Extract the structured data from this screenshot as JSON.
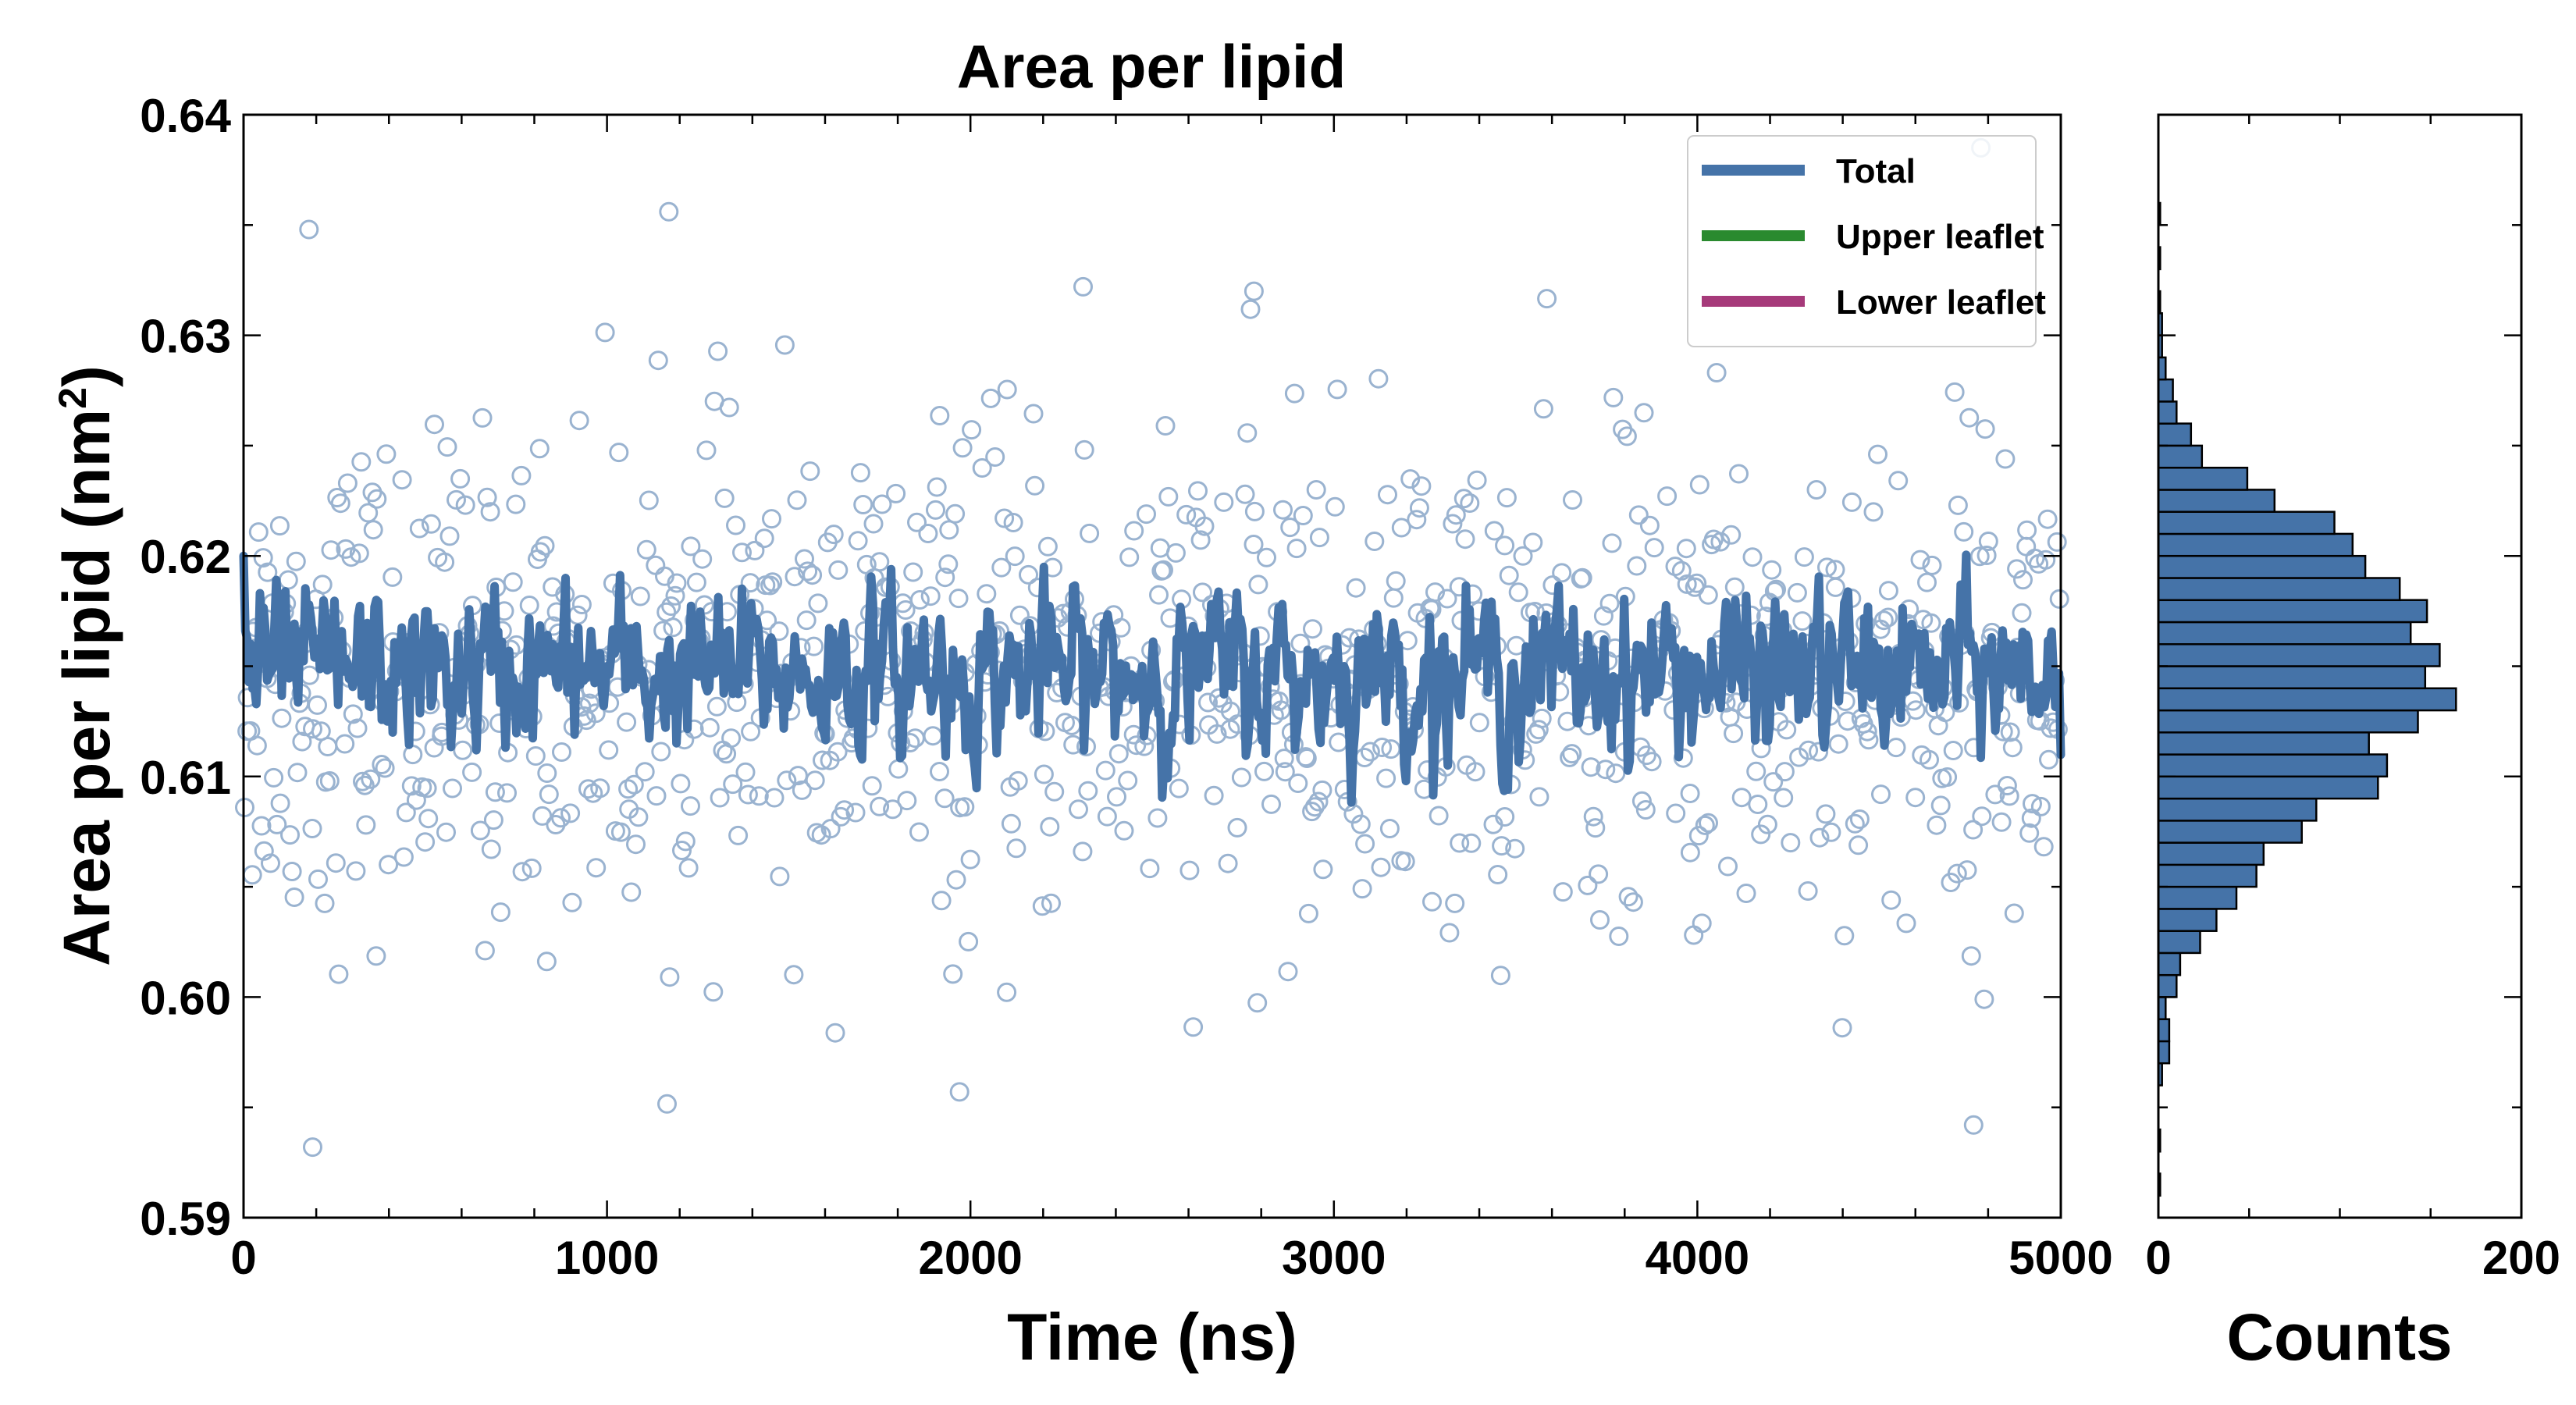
{
  "chart_data": [
    {
      "type": "line",
      "title": "Area per lipid",
      "xlabel": "Time (ns)",
      "ylabel": "Area per lipid (nm",
      "ylabel_sup": "2",
      "ylabel_close": ")",
      "xlim": [
        0,
        5000
      ],
      "ylim": [
        0.59,
        0.64
      ],
      "x_ticks": [
        "0",
        "1000",
        "2000",
        "3000",
        "4000",
        "5000"
      ],
      "y_ticks": [
        "0.59",
        "0.60",
        "0.61",
        "0.62",
        "0.63",
        "0.64"
      ],
      "grid": false,
      "legend_position": "top-right",
      "legend": [
        {
          "label": "Total",
          "color": "#4573a8"
        },
        {
          "label": "Upper leaflet",
          "color": "#2a8a2f"
        },
        {
          "label": "Lower leaflet",
          "color": "#a63a7a"
        }
      ],
      "series": [
        {
          "name": "Total",
          "color": "#4573a8",
          "mean": 0.6147,
          "noise_sd": 0.0015,
          "n_points": 1000
        }
      ],
      "scatter": {
        "color": "#9ab3d0",
        "mean": 0.6143,
        "sd": 0.0055,
        "n_points": 1000,
        "outliers": [
          {
            "x": 180,
            "y": 0.6348
          },
          {
            "x": 1170,
            "y": 0.6356
          },
          {
            "x": 190,
            "y": 0.5932
          },
          {
            "x": 4760,
            "y": 0.5942
          },
          {
            "x": 1970,
            "y": 0.5957
          },
          {
            "x": 4780,
            "y": 0.6385
          },
          {
            "x": 2780,
            "y": 0.632
          },
          {
            "x": 2310,
            "y": 0.6322
          }
        ]
      }
    },
    {
      "type": "bar",
      "orientation": "horizontal",
      "xlabel": "Counts",
      "xlim": [
        0,
        200
      ],
      "x_ticks": [
        "0",
        "200"
      ],
      "ylim": [
        0.59,
        0.64
      ],
      "bin_width": 0.001,
      "bins": [
        {
          "y0": 0.591,
          "count": 1
        },
        {
          "y0": 0.593,
          "count": 1
        },
        {
          "y0": 0.596,
          "count": 2
        },
        {
          "y0": 0.597,
          "count": 6
        },
        {
          "y0": 0.598,
          "count": 6
        },
        {
          "y0": 0.599,
          "count": 4
        },
        {
          "y0": 0.6,
          "count": 10
        },
        {
          "y0": 0.601,
          "count": 12
        },
        {
          "y0": 0.602,
          "count": 23
        },
        {
          "y0": 0.603,
          "count": 32
        },
        {
          "y0": 0.604,
          "count": 43
        },
        {
          "y0": 0.605,
          "count": 54
        },
        {
          "y0": 0.606,
          "count": 58
        },
        {
          "y0": 0.607,
          "count": 79
        },
        {
          "y0": 0.608,
          "count": 87
        },
        {
          "y0": 0.609,
          "count": 121
        },
        {
          "y0": 0.61,
          "count": 126
        },
        {
          "y0": 0.611,
          "count": 116
        },
        {
          "y0": 0.612,
          "count": 143
        },
        {
          "y0": 0.613,
          "count": 164
        },
        {
          "y0": 0.614,
          "count": 147
        },
        {
          "y0": 0.615,
          "count": 155
        },
        {
          "y0": 0.616,
          "count": 139
        },
        {
          "y0": 0.617,
          "count": 148
        },
        {
          "y0": 0.618,
          "count": 133
        },
        {
          "y0": 0.619,
          "count": 114
        },
        {
          "y0": 0.62,
          "count": 107
        },
        {
          "y0": 0.621,
          "count": 97
        },
        {
          "y0": 0.622,
          "count": 64
        },
        {
          "y0": 0.623,
          "count": 49
        },
        {
          "y0": 0.624,
          "count": 24
        },
        {
          "y0": 0.625,
          "count": 18
        },
        {
          "y0": 0.626,
          "count": 10
        },
        {
          "y0": 0.627,
          "count": 8
        },
        {
          "y0": 0.628,
          "count": 4
        },
        {
          "y0": 0.629,
          "count": 2
        },
        {
          "y0": 0.63,
          "count": 2
        },
        {
          "y0": 0.631,
          "count": 1
        },
        {
          "y0": 0.633,
          "count": 1
        },
        {
          "y0": 0.635,
          "count": 1
        }
      ]
    }
  ]
}
